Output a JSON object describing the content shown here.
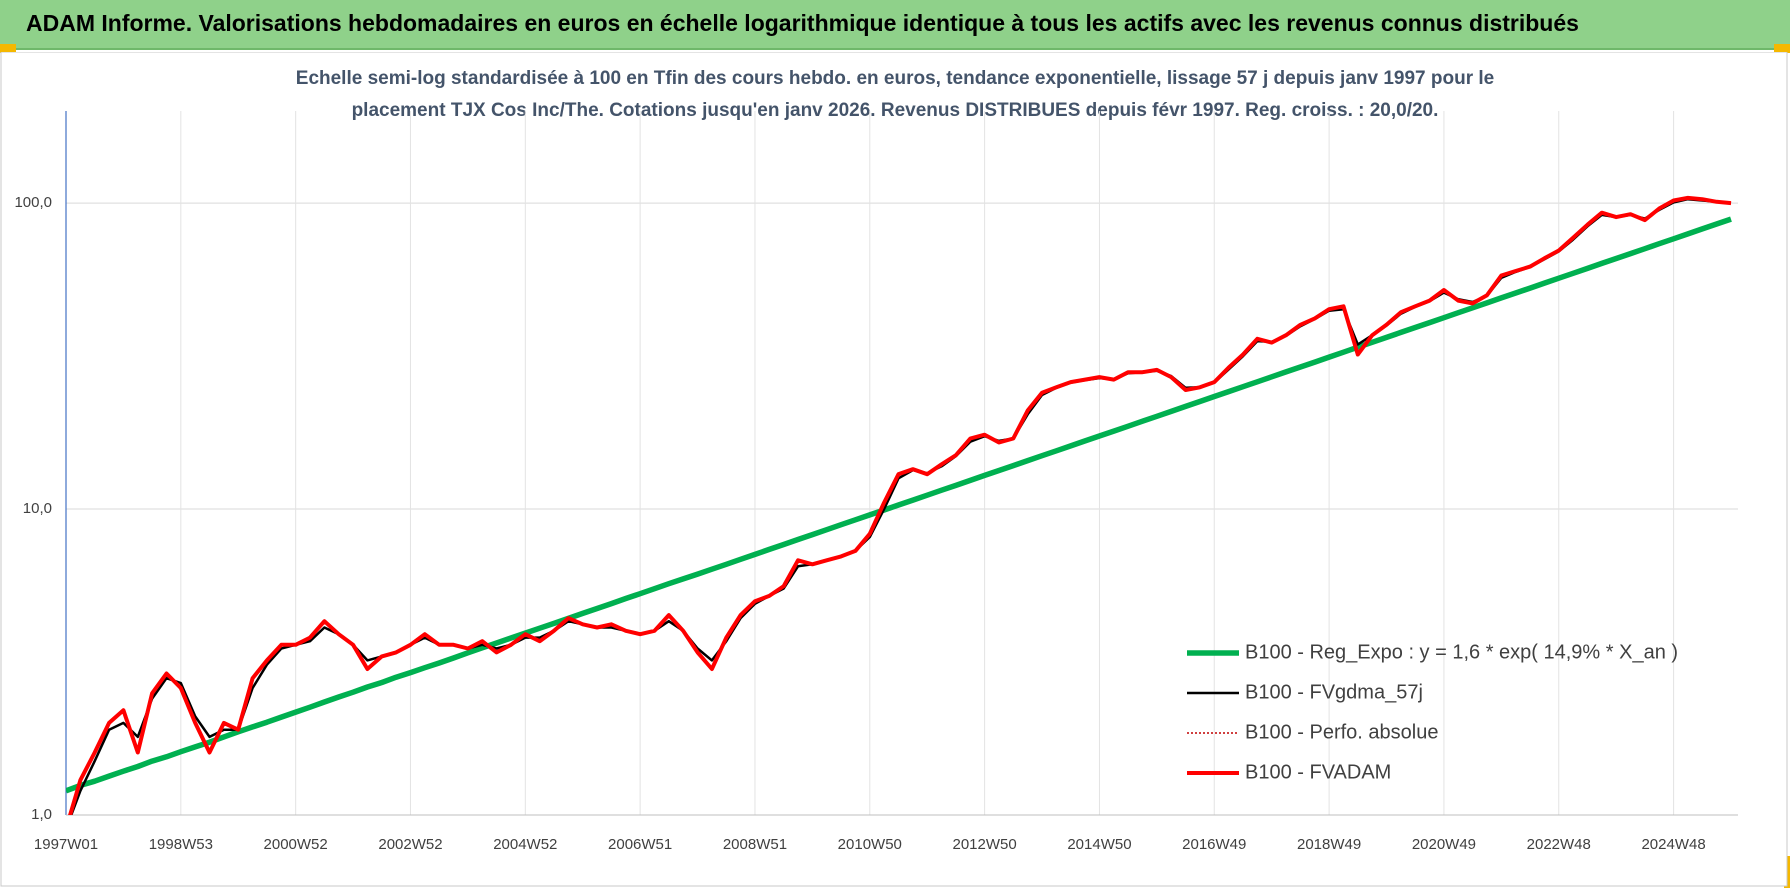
{
  "header": {
    "title": "ADAM Informe. Valorisations hebdomadaires en euros en échelle logarithmique identique à tous les actifs avec les revenus connus distribués"
  },
  "chart_data": {
    "type": "line",
    "subtitle": [
      "Echelle semi-log standardisée à 100 en Tfin des cours hebdo. en euros, tendance exponentielle, lissage 57 j depuis janv 1997 pour le",
      "placement TJX Cos Inc/The. Cotations jusqu'en janv 2026. Revenus DISTRIBUES depuis févr 1997. Reg. croiss. : 20,0/20."
    ],
    "log_scale": true,
    "grid": true,
    "legend": "lower right",
    "ylim": [
      1,
      200
    ],
    "yticks": [
      {
        "value": 1,
        "label": "1,0"
      },
      {
        "value": 10,
        "label": "10,0"
      },
      {
        "value": 100,
        "label": "100,0"
      }
    ],
    "categories": [
      "1997W01",
      null,
      null,
      null,
      null,
      null,
      null,
      null,
      "1998W53",
      null,
      null,
      null,
      null,
      null,
      null,
      null,
      "2000W52",
      null,
      null,
      null,
      null,
      null,
      null,
      null,
      "2002W52",
      null,
      null,
      null,
      null,
      null,
      null,
      null,
      "2004W52",
      null,
      null,
      null,
      null,
      null,
      null,
      null,
      "2006W51",
      null,
      null,
      null,
      null,
      null,
      null,
      null,
      "2008W51",
      null,
      null,
      null,
      null,
      null,
      null,
      null,
      "2010W50",
      null,
      null,
      null,
      null,
      null,
      null,
      null,
      "2012W50",
      null,
      null,
      null,
      null,
      null,
      null,
      null,
      "2014W50",
      null,
      null,
      null,
      null,
      null,
      null,
      null,
      "2016W49",
      null,
      null,
      null,
      null,
      null,
      null,
      null,
      "2018W49",
      null,
      null,
      null,
      null,
      null,
      null,
      null,
      "2020W49",
      null,
      null,
      null,
      null,
      null,
      null,
      null,
      "2022W48",
      null,
      null,
      null,
      null,
      null,
      null,
      null,
      "2024W48",
      null,
      null,
      null,
      null
    ],
    "series": [
      {
        "name": "B100 - Reg_Expo : y = 1,6 * exp( 14,9% *  X_an )",
        "color": "#00b050",
        "style": "solid",
        "values": [
          1.2,
          1.25,
          1.29,
          1.34,
          1.39,
          1.44,
          1.5,
          1.55,
          1.61,
          1.67,
          1.73,
          1.8,
          1.87,
          1.94,
          2.01,
          2.09,
          2.17,
          2.25,
          2.34,
          2.43,
          2.52,
          2.62,
          2.71,
          2.82,
          2.92,
          3.03,
          3.14,
          3.26,
          3.39,
          3.52,
          3.65,
          3.79,
          3.93,
          4.08,
          4.23,
          4.39,
          4.56,
          4.73,
          4.91,
          5.1,
          5.29,
          5.49,
          5.7,
          5.91,
          6.13,
          6.36,
          6.6,
          6.85,
          7.11,
          7.38,
          7.66,
          7.95,
          8.25,
          8.56,
          8.89,
          9.22,
          9.57,
          9.93,
          10.31,
          10.7,
          11.1,
          11.52,
          11.95,
          12.41,
          12.88,
          13.37,
          13.87,
          14.4,
          14.94,
          15.5,
          16.09,
          16.7,
          17.33,
          17.98,
          18.66,
          19.37,
          20.1,
          20.86,
          21.65,
          22.47,
          23.32,
          24.2,
          25.12,
          26.06,
          27.05,
          28.07,
          29.13,
          30.23,
          31.38,
          32.57,
          33.8,
          35.07,
          36.4,
          37.78,
          39.2,
          40.68,
          42.22,
          43.82,
          45.47,
          47.19,
          48.98,
          50.83,
          52.75,
          54.75,
          56.81,
          58.96,
          61.18,
          63.5,
          65.9,
          68.39,
          70.97,
          73.66,
          76.45,
          79.34,
          82.34,
          85.45,
          88.68
        ]
      },
      {
        "name": "B100 - FVgdma_57j",
        "color": "#000000",
        "style": "solid",
        "values": [
          0.9,
          1.2,
          1.5,
          1.9,
          2.0,
          1.8,
          2.4,
          2.8,
          2.7,
          2.1,
          1.8,
          1.9,
          1.9,
          2.6,
          3.1,
          3.5,
          3.6,
          3.7,
          4.1,
          3.9,
          3.6,
          3.2,
          3.3,
          3.4,
          3.6,
          3.8,
          3.6,
          3.6,
          3.5,
          3.6,
          3.5,
          3.6,
          3.8,
          3.8,
          4.0,
          4.3,
          4.2,
          4.1,
          4.1,
          4.0,
          3.9,
          4.0,
          4.3,
          4.0,
          3.5,
          3.2,
          3.7,
          4.4,
          4.9,
          5.2,
          5.5,
          6.5,
          6.6,
          6.8,
          7.0,
          7.3,
          8.1,
          10.0,
          12.6,
          13.4,
          13.1,
          13.8,
          14.9,
          16.6,
          17.3,
          16.7,
          17.0,
          20.4,
          23.6,
          24.9,
          25.9,
          26.4,
          26.8,
          26.6,
          27.8,
          28.0,
          28.3,
          27.2,
          24.9,
          25.0,
          25.9,
          28.6,
          31.6,
          35.4,
          35.2,
          36.8,
          39.6,
          41.8,
          44.5,
          45.0,
          34.5,
          37.0,
          39.8,
          43.5,
          45.8,
          47.8,
          51.0,
          48.5,
          47.5,
          49.8,
          57.0,
          59.6,
          61.8,
          65.5,
          69.5,
          76.0,
          84.0,
          91.5,
          90.0,
          91.5,
          89.0,
          95.0,
          100.5,
          103.0,
          102.0,
          101.0,
          100.0
        ]
      },
      {
        "name": "B100 - Perfo. absolue",
        "color": "#c00000",
        "style": "dotted",
        "values": [
          0.9,
          1.3,
          1.6,
          2.0,
          2.2,
          1.6,
          2.5,
          2.9,
          2.6,
          2.0,
          1.6,
          2.0,
          1.9,
          2.8,
          3.2,
          3.6,
          3.6,
          3.8,
          4.3,
          3.9,
          3.6,
          3.0,
          3.3,
          3.4,
          3.6,
          3.9,
          3.6,
          3.6,
          3.5,
          3.7,
          3.4,
          3.6,
          3.9,
          3.7,
          4.0,
          4.4,
          4.2,
          4.1,
          4.2,
          4.0,
          3.9,
          4.0,
          4.5,
          4.0,
          3.4,
          3.0,
          3.8,
          4.5,
          5.0,
          5.2,
          5.6,
          6.8,
          6.6,
          6.8,
          7.0,
          7.3,
          8.3,
          10.5,
          13,
          13.5,
          13,
          14,
          15,
          17,
          17.5,
          16.5,
          17,
          21,
          24,
          25,
          26,
          26.5,
          27,
          26.5,
          28,
          28,
          28.5,
          27,
          24.5,
          25,
          26,
          29,
          32,
          36,
          35,
          37,
          40,
          42,
          45,
          46,
          32,
          37,
          40,
          44,
          46,
          48,
          52,
          48,
          47,
          50,
          58,
          60,
          62,
          66,
          70,
          77,
          85,
          93,
          90,
          92,
          88,
          96,
          102,
          104,
          103,
          101,
          100
        ]
      },
      {
        "name": "B100 - FVADAM",
        "color": "#ff0000",
        "style": "solid",
        "values": [
          0.9,
          1.3,
          1.6,
          2.0,
          2.2,
          1.6,
          2.5,
          2.9,
          2.6,
          2.0,
          1.6,
          2.0,
          1.9,
          2.8,
          3.2,
          3.6,
          3.6,
          3.8,
          4.3,
          3.9,
          3.6,
          3.0,
          3.3,
          3.4,
          3.6,
          3.9,
          3.6,
          3.6,
          3.5,
          3.7,
          3.4,
          3.6,
          3.9,
          3.7,
          4.0,
          4.4,
          4.2,
          4.1,
          4.2,
          4.0,
          3.9,
          4.0,
          4.5,
          4.0,
          3.4,
          3.0,
          3.8,
          4.5,
          5.0,
          5.2,
          5.6,
          6.8,
          6.6,
          6.8,
          7.0,
          7.3,
          8.3,
          10.5,
          13,
          13.5,
          13,
          14,
          15,
          17,
          17.5,
          16.5,
          17,
          21,
          24,
          25,
          26,
          26.5,
          27,
          26.5,
          28,
          28,
          28.5,
          27,
          24.5,
          25,
          26,
          29,
          32,
          36,
          35,
          37,
          40,
          42,
          45,
          46,
          32,
          37,
          40,
          44,
          46,
          48,
          52,
          48,
          47,
          50,
          58,
          60,
          62,
          66,
          70,
          77,
          85,
          93,
          90,
          92,
          88,
          96,
          102,
          104,
          103,
          101,
          100
        ]
      }
    ]
  }
}
